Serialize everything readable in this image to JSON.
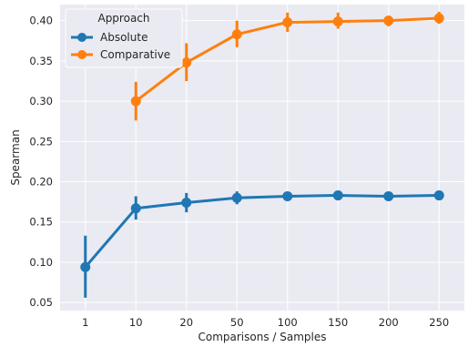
{
  "chart_data": {
    "type": "line",
    "title": "",
    "xlabel": "Comparisons / Samples",
    "ylabel": "Spearman",
    "categories": [
      "1",
      "10",
      "20",
      "50",
      "100",
      "150",
      "200",
      "250"
    ],
    "ylim": [
      0.04,
      0.42
    ],
    "yticks": [
      "0.05",
      "0.10",
      "0.15",
      "0.20",
      "0.25",
      "0.30",
      "0.35",
      "0.40"
    ],
    "grid": true,
    "legend": {
      "title": "Approach",
      "placement": "top-left"
    },
    "series": [
      {
        "name": "Absolute",
        "color": "#1f77b4",
        "values": [
          0.094,
          0.167,
          0.174,
          0.18,
          0.182,
          0.183,
          0.182,
          0.183
        ],
        "ci_low": [
          0.056,
          0.153,
          0.162,
          0.172,
          0.179,
          0.18,
          0.179,
          0.18
        ],
        "ci_high": [
          0.133,
          0.182,
          0.186,
          0.188,
          0.185,
          0.186,
          0.185,
          0.186
        ]
      },
      {
        "name": "Comparative",
        "color": "#ff7f0e",
        "values": [
          null,
          0.3,
          0.348,
          0.383,
          0.398,
          0.399,
          0.4,
          0.403
        ],
        "ci_low": [
          null,
          0.276,
          0.325,
          0.367,
          0.386,
          0.39,
          0.393,
          0.396
        ],
        "ci_high": [
          null,
          0.324,
          0.372,
          0.4,
          0.41,
          0.41,
          0.406,
          0.411
        ]
      }
    ]
  }
}
